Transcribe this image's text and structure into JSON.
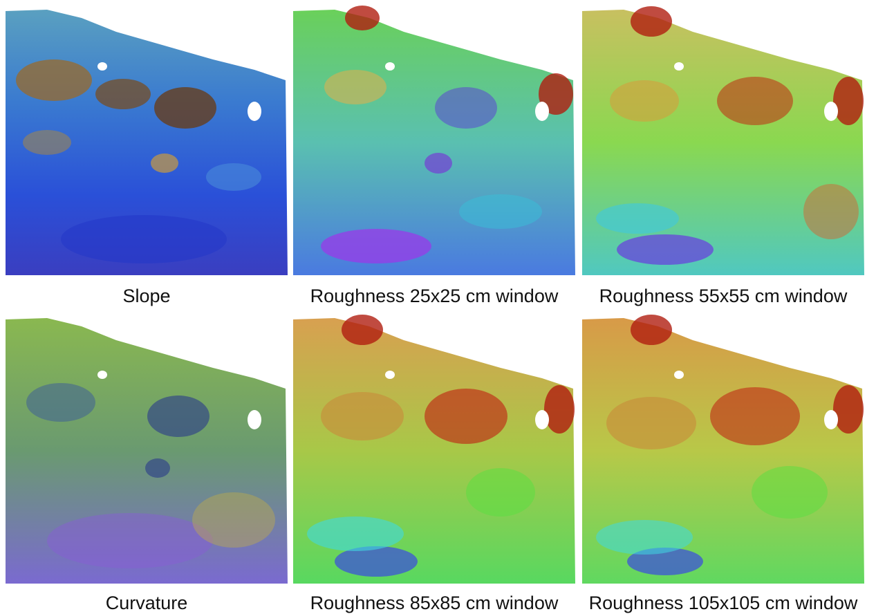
{
  "figure": {
    "panels": [
      {
        "caption": "Slope",
        "palette": "slope"
      },
      {
        "caption": "Roughness 25x25 cm window",
        "palette": "rough25"
      },
      {
        "caption": "Roughness 55x55 cm window",
        "palette": "rough55"
      },
      {
        "caption": "Curvature",
        "palette": "curvature"
      },
      {
        "caption": "Roughness 85x85 cm window",
        "palette": "rough85"
      },
      {
        "caption": "Roughness 105x105 cm window",
        "palette": "rough105"
      }
    ],
    "colors": {
      "blue": "#2a5fe0",
      "cyan": "#38c8e8",
      "green": "#5fe03a",
      "yellow": "#e8d060",
      "orange": "#d88a2a",
      "red": "#c81e10",
      "purple": "#8a3ee0",
      "brown": "#8a4a14"
    }
  }
}
